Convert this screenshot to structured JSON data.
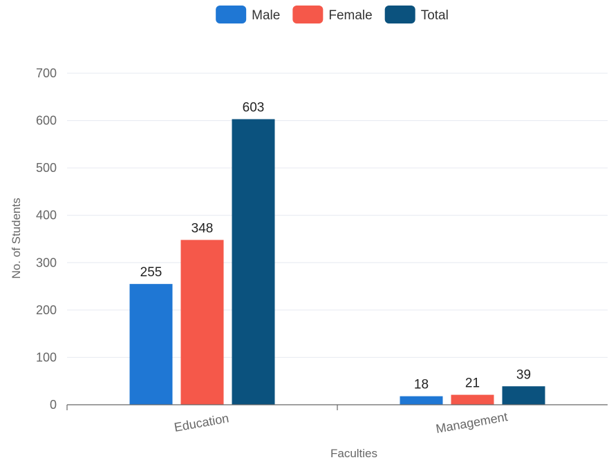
{
  "chart_data": {
    "type": "bar",
    "title": "",
    "xlabel": "Faculties",
    "ylabel": "No. of Students",
    "categories": [
      "Education",
      "Management"
    ],
    "series": [
      {
        "name": "Male",
        "color": "#1f77d4",
        "values": [
          255,
          18
        ]
      },
      {
        "name": "Female",
        "color": "#f5584a",
        "values": [
          348,
          21
        ]
      },
      {
        "name": "Total",
        "color": "#0b527e",
        "values": [
          603,
          39
        ]
      }
    ],
    "ylim": [
      0,
      700
    ],
    "yticks": [
      0,
      100,
      200,
      300,
      400,
      500,
      600,
      700
    ],
    "grid": true,
    "legend": "top-center",
    "data_labels": true
  }
}
